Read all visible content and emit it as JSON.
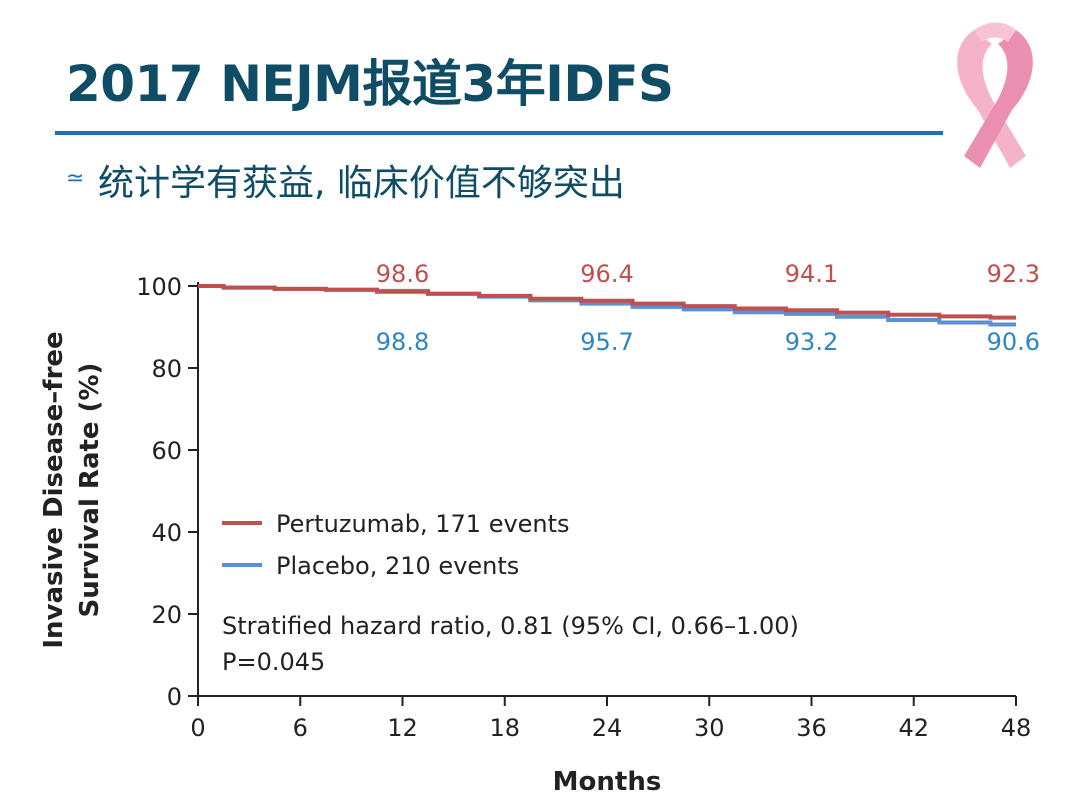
{
  "slide": {
    "title": "2017 NEJM报道3年IDFS",
    "subtitle": "统计学有获益, 临床价值不够突出",
    "bullet_icon": "wave-bullet-icon"
  },
  "colors": {
    "title": "#0f4c66",
    "rule": "#1f6eb5",
    "pertuzumab": "#c0504d",
    "placebo": "#5b8fd6",
    "pertuzumab_label": "#c0504d",
    "placebo_label": "#2e86c1",
    "ribbon": "#f2a6c0"
  },
  "chart_data": {
    "type": "line",
    "title": "",
    "xlabel": "Months",
    "ylabel": [
      "Invasive Disease–free",
      "Survival Rate (%)"
    ],
    "xlim": [
      0,
      48
    ],
    "ylim": [
      0,
      100
    ],
    "xticks": [
      0,
      6,
      12,
      18,
      24,
      30,
      36,
      42,
      48
    ],
    "yticks": [
      0,
      20,
      40,
      60,
      80,
      100
    ],
    "grid": false,
    "legend_position": "lower-left",
    "series": [
      {
        "name": "Pertuzumab, 171 events",
        "color_key": "pertuzumab",
        "x": [
          0,
          3,
          6,
          9,
          12,
          15,
          18,
          21,
          24,
          27,
          30,
          33,
          36,
          39,
          42,
          45,
          48
        ],
        "y": [
          100,
          99.6,
          99.3,
          99.1,
          98.6,
          98.1,
          97.6,
          96.9,
          96.4,
          95.7,
          95.1,
          94.5,
          94.1,
          93.5,
          93.0,
          92.6,
          92.3
        ]
      },
      {
        "name": "Placebo, 210 events",
        "color_key": "placebo",
        "x": [
          0,
          3,
          6,
          9,
          12,
          15,
          18,
          21,
          24,
          27,
          30,
          33,
          36,
          39,
          42,
          45,
          48
        ],
        "y": [
          100,
          99.6,
          99.3,
          99.1,
          98.8,
          98.1,
          97.4,
          96.5,
          95.7,
          94.9,
          94.3,
          93.6,
          93.2,
          92.5,
          91.7,
          91.1,
          90.6
        ]
      }
    ],
    "annotations": [
      {
        "x": 12,
        "pertuzumab": "98.6",
        "placebo": "98.8"
      },
      {
        "x": 24,
        "pertuzumab": "96.4",
        "placebo": "95.7"
      },
      {
        "x": 36,
        "pertuzumab": "94.1",
        "placebo": "93.2"
      },
      {
        "x": 48,
        "pertuzumab": "92.3",
        "placebo": "90.6"
      }
    ],
    "stats_text": [
      "Stratified hazard ratio, 0.81 (95% CI, 0.66–1.00)",
      "P=0.045"
    ]
  }
}
